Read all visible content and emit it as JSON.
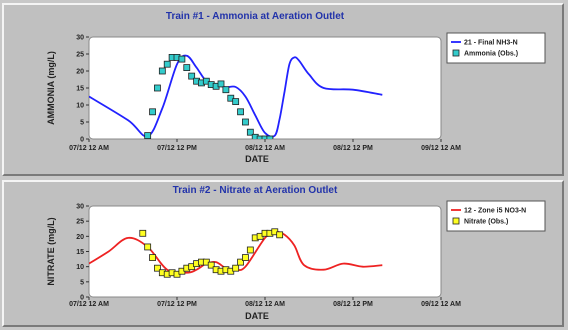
{
  "chart_data": [
    {
      "type": "line",
      "title": "Train #1 - Ammonia at Aeration Outlet",
      "xlabel": "DATE",
      "ylabel": "AMMONIA (mg/L)",
      "ylim": [
        0,
        30
      ],
      "yticks": [
        0,
        5,
        10,
        15,
        20,
        25,
        30
      ],
      "xlim": [
        "07/12 12 AM",
        "09/13 12 AM"
      ],
      "xticks": [
        "07/12 12 AM",
        "07/12 12 PM",
        "08/12 12 AM",
        "08/12 12 PM",
        "09/12 12 AM"
      ],
      "grid": false,
      "legend_position": "right",
      "series": [
        {
          "name": "21 - Final NH3-N",
          "style": "line",
          "color": "#2222ff",
          "x": [
            -12,
            -4,
            0,
            3,
            6,
            8,
            10,
            12,
            14,
            16,
            18,
            20,
            22,
            24,
            26,
            27,
            28,
            29,
            30,
            31,
            33,
            36,
            42,
            48
          ],
          "y": [
            12.5,
            5.5,
            0.8,
            9,
            22,
            24.5,
            21,
            17,
            16,
            15.2,
            15.3,
            12.5,
            7,
            1.8,
            1,
            6,
            14,
            22,
            24,
            23,
            19,
            15,
            14.5,
            13
          ]
        },
        {
          "name": "Ammonia (Obs.)",
          "style": "marker",
          "color": "#33cccc",
          "x": [
            0,
            1,
            2,
            3,
            4,
            5,
            6,
            7,
            8,
            9,
            10,
            11,
            12,
            13,
            14,
            15,
            16,
            17,
            18,
            19,
            20,
            21,
            22,
            23,
            24,
            25
          ],
          "y": [
            1,
            8,
            15,
            20,
            22,
            24,
            24,
            23.5,
            21,
            18.5,
            17,
            16.5,
            17,
            16,
            15.5,
            16.2,
            14.5,
            12,
            11,
            8,
            5,
            2,
            0.5,
            0,
            0,
            0
          ]
        }
      ]
    },
    {
      "type": "line",
      "title": "Train #2 - Nitrate at Aeration Outlet",
      "xlabel": "DATE",
      "ylabel": "NITRATE (mg/L)",
      "ylim": [
        0,
        30
      ],
      "yticks": [
        0,
        5,
        10,
        15,
        20,
        25,
        30
      ],
      "xlim": [
        "07/12 12 AM",
        "09/13 12 AM"
      ],
      "xticks": [
        "07/12 12 AM",
        "07/12 12 PM",
        "08/12 12 AM",
        "08/12 12 PM",
        "09/12 12 AM"
      ],
      "grid": false,
      "legend_position": "right",
      "series": [
        {
          "name": "12 - Zone i5 NO3-N",
          "style": "line",
          "color": "#ee2222",
          "x": [
            -12,
            -8,
            -4,
            0,
            4,
            8,
            10,
            12,
            14,
            16,
            18,
            20,
            24,
            26,
            28,
            30,
            32,
            36,
            40,
            44,
            48
          ],
          "y": [
            11,
            15,
            19.5,
            16.5,
            9,
            8,
            9,
            11,
            11.5,
            9.5,
            9,
            10,
            19.5,
            21.5,
            20.5,
            17,
            10.5,
            9,
            11,
            10,
            10.5
          ]
        },
        {
          "name": "Nitrate (Obs.)",
          "style": "marker",
          "color": "#ffff22",
          "x": [
            -1,
            0,
            1,
            2,
            3,
            4,
            5,
            6,
            7,
            8,
            9,
            10,
            11,
            12,
            13,
            14,
            15,
            16,
            17,
            18,
            19,
            20,
            21,
            22,
            23,
            24,
            25,
            26,
            27
          ],
          "y": [
            21,
            16.5,
            13,
            9.5,
            8,
            7.5,
            8,
            7.5,
            8.5,
            9.5,
            10,
            11,
            11.5,
            11.5,
            10.5,
            9,
            8.5,
            9,
            8.5,
            9.5,
            11.5,
            13,
            15.5,
            19.5,
            20,
            21,
            21,
            21.5,
            20.5
          ]
        }
      ]
    }
  ]
}
